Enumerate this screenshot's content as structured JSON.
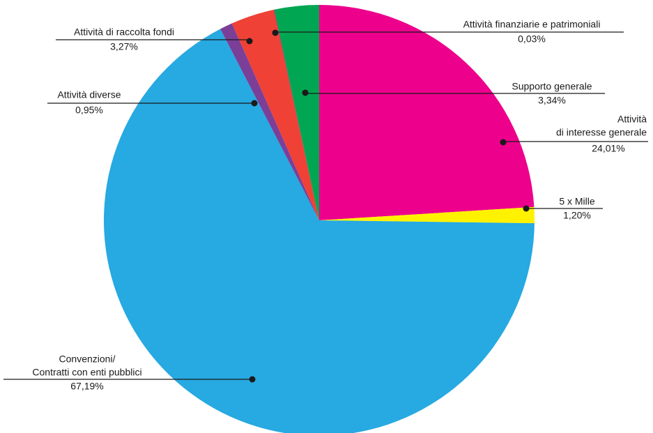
{
  "chart_data": {
    "type": "pie",
    "categories": [
      [
        "Attività",
        "di interesse generale"
      ],
      [
        "5 x Mille"
      ],
      [
        "Convenzioni/",
        "Contratti con enti pubblici"
      ],
      [
        "Attività diverse"
      ],
      [
        "Attività di raccolta fondi"
      ],
      [
        "Attività finanziarie e patrimoniali"
      ],
      [
        "Supporto generale"
      ]
    ],
    "values": [
      24.01,
      1.2,
      67.19,
      0.95,
      3.27,
      0.03,
      3.34
    ],
    "value_labels": [
      "24,01%",
      "1,20%",
      "67,19%",
      "0,95%",
      "3,27%",
      "0,03%",
      "3,34%"
    ],
    "colors": [
      "#ec008c",
      "#fff200",
      "#27a9e1",
      "#7b3f98",
      "#ef4136",
      "#2e3192",
      "#00a651"
    ]
  }
}
